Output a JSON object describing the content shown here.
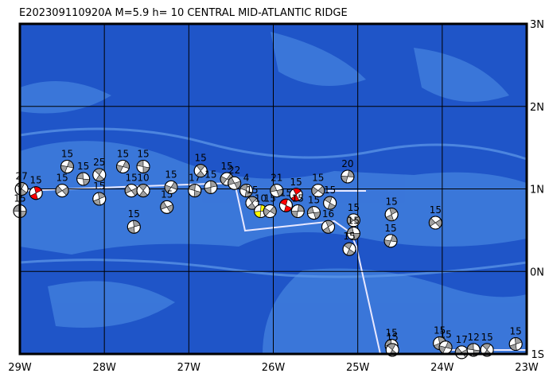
{
  "chart_data": {
    "type": "focal-map",
    "title": "E202309110920A  M=5.9  h= 10 CENTRAL MID-ATLANTIC RIDGE",
    "xlim": [
      -29,
      -23
    ],
    "ylim": [
      -1,
      3
    ],
    "xticks": [
      {
        "value": -29,
        "label": "29W"
      },
      {
        "value": -28,
        "label": "28W"
      },
      {
        "value": -27,
        "label": "27W"
      },
      {
        "value": -26,
        "label": "26W"
      },
      {
        "value": -25,
        "label": "25W"
      },
      {
        "value": -24,
        "label": "24W"
      },
      {
        "value": -23,
        "label": "23W"
      }
    ],
    "yticks": [
      {
        "value": 3,
        "label": "3N"
      },
      {
        "value": 2,
        "label": "2N"
      },
      {
        "value": 1,
        "label": "1N"
      },
      {
        "value": 0,
        "label": "0N"
      },
      {
        "value": -1,
        "label": "1S"
      }
    ],
    "grid": true,
    "ball_color": "#a0a0a0",
    "events": [
      {
        "lon": -29.0,
        "lat": 0.73,
        "depth": 15
      },
      {
        "lon": -28.98,
        "lat": 1.0,
        "depth": 27
      },
      {
        "lon": -28.81,
        "lat": 0.95,
        "depth": 15,
        "color": "#ff0000"
      },
      {
        "lon": -28.44,
        "lat": 1.27,
        "depth": 15
      },
      {
        "lon": -28.5,
        "lat": 0.98,
        "depth": 15
      },
      {
        "lon": -28.25,
        "lat": 1.12,
        "depth": 15
      },
      {
        "lon": -28.06,
        "lat": 1.17,
        "depth": 25
      },
      {
        "lon": -28.06,
        "lat": 0.88,
        "depth": 15
      },
      {
        "lon": -27.78,
        "lat": 1.27,
        "depth": 15
      },
      {
        "lon": -27.68,
        "lat": 0.98,
        "depth": 15
      },
      {
        "lon": -27.54,
        "lat": 1.27,
        "depth": 15
      },
      {
        "lon": -27.54,
        "lat": 0.98,
        "depth": 10
      },
      {
        "lon": -27.65,
        "lat": 0.54,
        "depth": 15
      },
      {
        "lon": -27.21,
        "lat": 1.02,
        "depth": 15
      },
      {
        "lon": -27.26,
        "lat": 0.78,
        "depth": 15
      },
      {
        "lon": -26.93,
        "lat": 0.98,
        "depth": 17
      },
      {
        "lon": -26.86,
        "lat": 1.22,
        "depth": 15
      },
      {
        "lon": -26.74,
        "lat": 1.02,
        "depth": 15
      },
      {
        "lon": -26.55,
        "lat": 1.12,
        "depth": 15
      },
      {
        "lon": -26.46,
        "lat": 1.07,
        "depth": 22
      },
      {
        "lon": -26.32,
        "lat": 0.98,
        "depth": 4
      },
      {
        "lon": -26.25,
        "lat": 0.83,
        "depth": 15
      },
      {
        "lon": -26.15,
        "lat": 0.73,
        "depth": 10,
        "color": "#ffff00"
      },
      {
        "lon": -26.04,
        "lat": 0.73,
        "depth": 15
      },
      {
        "lon": -25.96,
        "lat": 0.98,
        "depth": 21
      },
      {
        "lon": -25.85,
        "lat": 0.8,
        "depth": 15,
        "color": "#ff0000"
      },
      {
        "lon": -25.73,
        "lat": 0.93,
        "depth": 15,
        "color": "#ff0000"
      },
      {
        "lon": -25.71,
        "lat": 0.73,
        "depth": 15
      },
      {
        "lon": -25.47,
        "lat": 0.98,
        "depth": 15
      },
      {
        "lon": -25.52,
        "lat": 0.71,
        "depth": 15
      },
      {
        "lon": -25.33,
        "lat": 0.83,
        "depth": 15
      },
      {
        "lon": -25.35,
        "lat": 0.54,
        "depth": 16
      },
      {
        "lon": -25.12,
        "lat": 1.15,
        "depth": 20
      },
      {
        "lon": -25.05,
        "lat": 0.62,
        "depth": 15
      },
      {
        "lon": -25.05,
        "lat": 0.46,
        "depth": 15
      },
      {
        "lon": -25.1,
        "lat": 0.27,
        "depth": 15
      },
      {
        "lon": -24.6,
        "lat": 0.69,
        "depth": 15
      },
      {
        "lon": -24.61,
        "lat": 0.37,
        "depth": 15
      },
      {
        "lon": -24.08,
        "lat": 0.59,
        "depth": 15
      },
      {
        "lon": -24.6,
        "lat": -0.9,
        "depth": 15
      },
      {
        "lon": -24.59,
        "lat": -0.95,
        "depth": 15
      },
      {
        "lon": -24.03,
        "lat": -0.87,
        "depth": 15
      },
      {
        "lon": -23.96,
        "lat": -0.92,
        "depth": 15
      },
      {
        "lon": -23.77,
        "lat": -0.98,
        "depth": 17
      },
      {
        "lon": -23.63,
        "lat": -0.95,
        "depth": 12
      },
      {
        "lon": -23.47,
        "lat": -0.95,
        "depth": 15
      },
      {
        "lon": -23.13,
        "lat": -0.88,
        "depth": 15
      }
    ]
  }
}
